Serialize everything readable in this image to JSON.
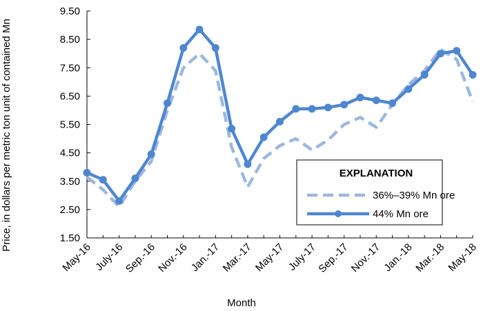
{
  "chart_data": {
    "type": "line",
    "title": "",
    "xlabel": "Month",
    "ylabel": "Price, in dollars per metric ton unit of contained Mn",
    "ylim": [
      1.5,
      9.5
    ],
    "yticks": [
      "1.50",
      "2.50",
      "3.50",
      "4.50",
      "5.50",
      "6.50",
      "7.50",
      "8.50",
      "9.50"
    ],
    "xtick_labels": [
      "May-16",
      "July-16",
      "Sep.-16",
      "Nov.-16",
      "Jan.-17",
      "Mar.-17",
      "May-17",
      "July-17",
      "Sep.-17",
      "Nov.-17",
      "Jan.-18",
      "Mar.-18",
      "May-18"
    ],
    "grid": false,
    "legend": {
      "title": "EXPLANATION",
      "placement": "lower-right"
    },
    "series": [
      {
        "name": "36%–39% Mn ore",
        "style": "dashed",
        "color": "#9db7e0",
        "values": [
          3.65,
          3.2,
          2.6,
          3.5,
          4.2,
          6.0,
          7.5,
          8.0,
          7.4,
          4.7,
          3.3,
          4.3,
          4.75,
          5.0,
          4.6,
          4.95,
          5.5,
          5.75,
          5.4,
          6.2,
          6.9,
          7.4,
          8.15,
          7.8,
          6.3
        ]
      },
      {
        "name": "44% Mn ore",
        "style": "solid-markers",
        "color": "#4f86d0",
        "values": [
          3.8,
          3.55,
          2.8,
          3.6,
          4.45,
          6.25,
          8.2,
          8.85,
          8.2,
          5.35,
          4.1,
          5.05,
          5.6,
          6.05,
          6.05,
          6.1,
          6.2,
          6.45,
          6.35,
          6.25,
          6.75,
          7.25,
          8.0,
          8.1,
          7.25
        ]
      }
    ]
  }
}
